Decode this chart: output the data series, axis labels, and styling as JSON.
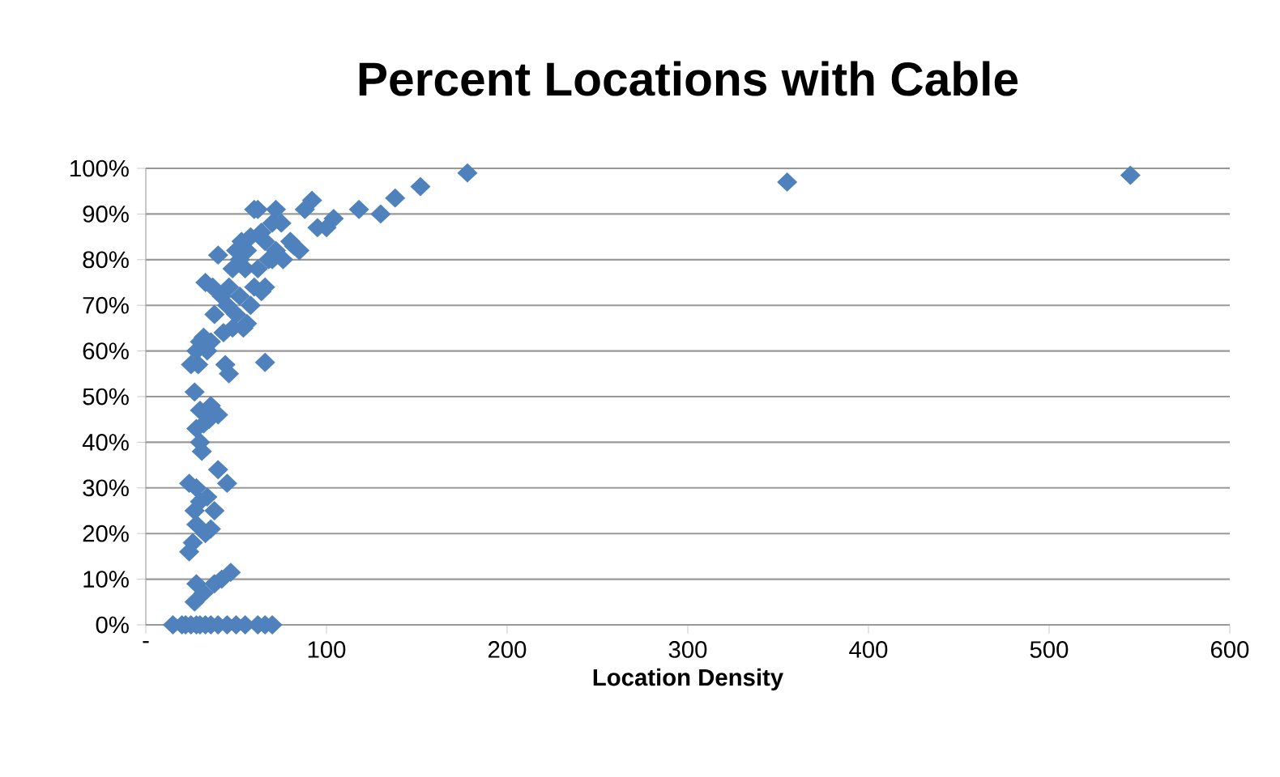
{
  "chart_data": {
    "type": "scatter",
    "title": "Percent Locations with Cable",
    "xlabel": "Location Density",
    "x": [
      545,
      355,
      178,
      152,
      138,
      130,
      118,
      104,
      100,
      92,
      88,
      85,
      80,
      75,
      72,
      70,
      68,
      66,
      64,
      62,
      60,
      58,
      56,
      55,
      53,
      52,
      50,
      48,
      46,
      45,
      43,
      42,
      40,
      38,
      37,
      36,
      34,
      33,
      32,
      30,
      29,
      28,
      44,
      46,
      48,
      50,
      52,
      54,
      56,
      58,
      60,
      62,
      64,
      66,
      66,
      70,
      72,
      76,
      82,
      95,
      25,
      27,
      30,
      28,
      30,
      31,
      35,
      36,
      40,
      32,
      24,
      28,
      27,
      30,
      34,
      38,
      40,
      45,
      28,
      33,
      36,
      24,
      26,
      28,
      27,
      32,
      38,
      42,
      47,
      15,
      20,
      22,
      25,
      28,
      30,
      33,
      36,
      40,
      45,
      50,
      55,
      62,
      66,
      70
    ],
    "series": [
      {
        "color": "#4f81bd",
        "values": [
          98.5,
          97,
          99,
          96,
          93.5,
          90,
          91,
          89,
          87,
          93,
          91,
          82,
          84,
          88,
          91,
          88,
          80,
          84,
          86,
          91,
          91,
          85,
          82,
          78,
          84,
          80,
          82,
          78,
          74,
          70,
          64,
          72,
          81,
          68,
          74,
          62,
          60,
          75,
          63,
          62,
          57,
          60,
          57,
          55,
          65,
          68,
          72,
          65,
          66,
          70,
          74,
          78,
          73,
          74,
          57.5,
          80,
          82,
          80,
          83,
          87,
          57,
          51,
          47,
          43,
          40,
          38,
          45,
          48,
          46,
          44,
          31,
          30,
          25,
          27,
          28,
          25,
          34,
          31,
          22,
          20,
          21,
          16,
          18,
          9,
          5,
          7,
          9,
          10,
          11.5,
          0,
          0,
          0,
          0,
          0,
          0,
          0,
          0,
          0,
          0,
          0,
          0,
          0,
          0,
          0
        ]
      }
    ],
    "xlim": [
      0,
      600
    ],
    "xticks": [
      {
        "value": 0,
        "label": "-"
      },
      100,
      200,
      300,
      400,
      500,
      600
    ],
    "ylim": [
      0,
      100
    ],
    "yticks": [
      {
        "value": 0,
        "label": "0%"
      },
      {
        "value": 10,
        "label": "10%"
      },
      {
        "value": 20,
        "label": "20%"
      },
      {
        "value": 30,
        "label": "30%"
      },
      {
        "value": 40,
        "label": "40%"
      },
      {
        "value": 50,
        "label": "50%"
      },
      {
        "value": 60,
        "label": "60%"
      },
      {
        "value": 70,
        "label": "70%"
      },
      {
        "value": 80,
        "label": "80%"
      },
      {
        "value": 90,
        "label": "90%"
      },
      {
        "value": 100,
        "label": "100%"
      }
    ],
    "grid": "y",
    "marker": "diamond"
  }
}
